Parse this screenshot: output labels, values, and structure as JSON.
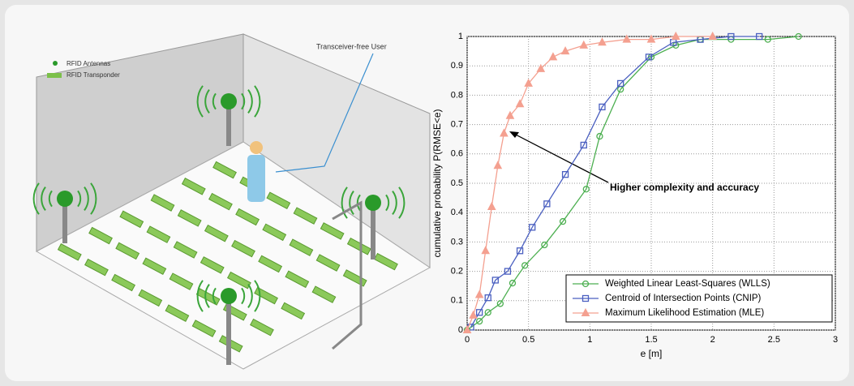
{
  "illustration": {
    "legend": [
      "RFID Antennas",
      "RFID Transponder"
    ],
    "callout": "Transceiver-free User"
  },
  "chart_data": {
    "type": "line",
    "xlabel": "e [m]",
    "ylabel": "cumulative probability P(RMSE<e)",
    "annotation": "Higher complexity and accuracy",
    "xlim": [
      0,
      3
    ],
    "ylim": [
      0,
      1
    ],
    "xticks": [
      0,
      0.5,
      1,
      1.5,
      2,
      2.5,
      3
    ],
    "yticks": [
      0,
      0.1,
      0.2,
      0.3,
      0.4,
      0.5,
      0.6,
      0.7,
      0.8,
      0.9,
      1
    ],
    "grid": true,
    "legend": "lower right",
    "series": [
      {
        "name": "Weighted Linear Least-Squares (WLLS)",
        "color": "#4caf50",
        "marker": "circle",
        "x": [
          0,
          0.1,
          0.17,
          0.27,
          0.37,
          0.47,
          0.63,
          0.78,
          0.97,
          1.08,
          1.25,
          1.5,
          1.7,
          1.9,
          2.15,
          2.45,
          2.7
        ],
        "values": [
          0,
          0.03,
          0.06,
          0.09,
          0.16,
          0.22,
          0.29,
          0.37,
          0.48,
          0.66,
          0.82,
          0.93,
          0.97,
          0.99,
          0.99,
          0.99,
          1
        ]
      },
      {
        "name": "Centroid of Intersection Points (CNIP)",
        "color": "#4a5fc0",
        "marker": "square",
        "x": [
          0.03,
          0.1,
          0.17,
          0.23,
          0.33,
          0.43,
          0.53,
          0.65,
          0.8,
          0.95,
          1.1,
          1.25,
          1.48,
          1.68,
          1.9,
          2.15,
          2.38
        ],
        "values": [
          0.01,
          0.06,
          0.11,
          0.17,
          0.2,
          0.27,
          0.35,
          0.43,
          0.53,
          0.63,
          0.76,
          0.84,
          0.93,
          0.98,
          0.99,
          1,
          1
        ]
      },
      {
        "name": "Maximum Likelihood Estimation (MLE)",
        "color": "#f4a090",
        "marker": "triangle",
        "x": [
          0,
          0.05,
          0.1,
          0.15,
          0.2,
          0.25,
          0.3,
          0.35,
          0.43,
          0.5,
          0.6,
          0.7,
          0.8,
          0.95,
          1.1,
          1.3,
          1.5,
          1.7,
          2
        ],
        "values": [
          0,
          0.05,
          0.12,
          0.27,
          0.42,
          0.56,
          0.67,
          0.73,
          0.77,
          0.84,
          0.89,
          0.93,
          0.95,
          0.97,
          0.98,
          0.99,
          0.99,
          1,
          1
        ]
      }
    ]
  }
}
